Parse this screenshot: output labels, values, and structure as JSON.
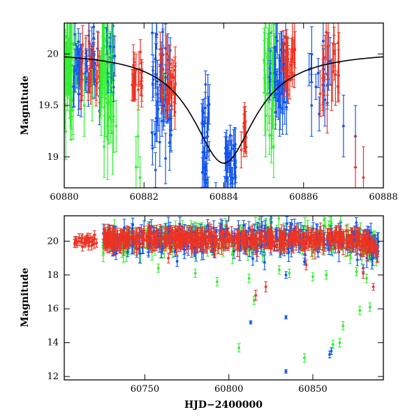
{
  "chart_data": [
    {
      "type": "scatter",
      "title": "",
      "xlabel": "",
      "ylabel": "Magnitude",
      "xlim": [
        60880,
        60888
      ],
      "ylim": [
        20.3,
        18.7
      ],
      "y_inverted": true,
      "x_ticks": [
        60880,
        60882,
        60884,
        60886,
        60888
      ],
      "y_ticks": [
        19,
        19.5,
        20
      ],
      "x_tick_labels": [
        "60880",
        "60882",
        "60884",
        "60886",
        "60888"
      ],
      "y_tick_labels": [
        "19",
        "19.5",
        "20"
      ],
      "series_colors": {
        "green": "#33ee33",
        "blue": "#1155ee",
        "red": "#ee3322",
        "model": "#000000"
      },
      "model_curve": {
        "type": "lorentzian-peak",
        "peak_x": 60884.0,
        "peak_mag": 18.94,
        "baseline_mag": 20.03
      },
      "series": [
        {
          "color": "green",
          "points": [
            [
              60880.02,
              19.85,
              0.3
            ],
            [
              60880.08,
              20.05,
              0.35
            ],
            [
              60880.15,
              19.7,
              0.4
            ],
            [
              60880.22,
              20.1,
              0.3
            ],
            [
              60880.3,
              19.95,
              0.25
            ],
            [
              60880.5,
              19.5,
              0.3
            ],
            [
              60880.7,
              19.6,
              0.25
            ],
            [
              60881.0,
              19.1,
              0.3
            ],
            [
              60881.05,
              19.9,
              0.3
            ],
            [
              60881.1,
              20.05,
              0.3
            ],
            [
              60881.15,
              19.7,
              0.3
            ],
            [
              60881.2,
              20.0,
              0.3
            ],
            [
              60881.3,
              19.3,
              0.25
            ],
            [
              60881.8,
              18.9,
              0.3
            ],
            [
              60881.85,
              19.2,
              0.3
            ],
            [
              60881.9,
              18.8,
              0.2
            ],
            [
              60882.5,
              19.6,
              0.2
            ],
            [
              60885.05,
              19.4,
              0.4
            ],
            [
              60885.1,
              19.9,
              0.3
            ],
            [
              60885.15,
              20.1,
              0.2
            ],
            [
              60885.2,
              19.7,
              0.3
            ],
            [
              60885.25,
              19.1,
              0.3
            ]
          ]
        },
        {
          "color": "blue",
          "points": [
            [
              60880.3,
              19.95,
              0.15
            ],
            [
              60880.4,
              20.05,
              0.15
            ],
            [
              60880.55,
              19.9,
              0.15
            ],
            [
              60880.75,
              19.85,
              0.15
            ],
            [
              60882.3,
              19.8,
              0.3
            ],
            [
              60882.4,
              19.7,
              0.2
            ],
            [
              60882.5,
              19.5,
              0.2
            ],
            [
              60882.6,
              19.6,
              0.25
            ],
            [
              60883.5,
              18.9,
              0.2
            ],
            [
              60883.6,
              19.5,
              0.3
            ],
            [
              60883.8,
              18.6,
              0.15
            ],
            [
              60884.1,
              19.0,
              0.15
            ],
            [
              60884.2,
              18.75,
              0.15
            ],
            [
              60884.3,
              18.9,
              0.15
            ],
            [
              60885.3,
              19.8,
              0.25
            ],
            [
              60885.4,
              19.5,
              0.3
            ],
            [
              60885.5,
              19.9,
              0.2
            ],
            [
              60886.2,
              19.5,
              0.3
            ],
            [
              60886.5,
              19.85,
              0.2
            ],
            [
              60886.6,
              19.7,
              0.2
            ],
            [
              60887.0,
              19.3,
              0.3
            ],
            [
              60887.3,
              19.2,
              0.3
            ]
          ]
        },
        {
          "color": "red",
          "points": [
            [
              60880.45,
              19.75,
              0.2
            ],
            [
              60880.6,
              19.7,
              0.15
            ],
            [
              60880.8,
              19.75,
              0.2
            ],
            [
              60881.7,
              19.7,
              0.15
            ],
            [
              60881.8,
              19.85,
              0.15
            ],
            [
              60882.6,
              19.6,
              0.15
            ],
            [
              60882.7,
              19.8,
              0.15
            ],
            [
              60884.5,
              19.15,
              0.15
            ],
            [
              60884.55,
              19.2,
              0.15
            ],
            [
              60885.6,
              19.85,
              0.2
            ],
            [
              60885.7,
              19.95,
              0.2
            ],
            [
              60886.5,
              19.6,
              0.2
            ],
            [
              60886.6,
              19.9,
              0.3
            ],
            [
              60886.7,
              19.7,
              0.25
            ],
            [
              60886.8,
              19.8,
              0.3
            ],
            [
              60887.3,
              18.9,
              0.3
            ],
            [
              60887.5,
              18.8,
              0.3
            ]
          ]
        }
      ]
    },
    {
      "type": "scatter",
      "title": "",
      "xlabel": "HJD−2400000",
      "ylabel": "Magnitude",
      "xlim": [
        60702,
        60892
      ],
      "ylim": [
        21.5,
        11.8
      ],
      "y_inverted": true,
      "x_ticks": [
        60750,
        60800,
        60850
      ],
      "y_ticks": [
        12,
        14,
        16,
        18,
        20
      ],
      "x_tick_labels": [
        "60750",
        "60800",
        "60850"
      ],
      "y_tick_labels": [
        "12",
        "14",
        "16",
        "18",
        "20"
      ],
      "dense_band": {
        "x_start": 60725,
        "x_end": 60889,
        "mean_mag": 20.1,
        "scatter_mag": 0.35,
        "pre_x_start": 60708,
        "pre_x_end": 60722
      },
      "series": [
        {
          "color": "green",
          "points": [
            [
              60806,
              13.7,
              0.25
            ],
            [
              60845,
              13.1,
              0.25
            ],
            [
              60862,
              13.9,
              0.25
            ],
            [
              60866,
              14.0,
              0.25
            ],
            [
              60868,
              15.0,
              0.25
            ],
            [
              60878,
              15.9,
              0.25
            ],
            [
              60884,
              16.1,
              0.25
            ],
            [
              60815,
              16.5,
              0.25
            ],
            [
              60793,
              17.6,
              0.25
            ],
            [
              60812,
              17.8,
              0.25
            ],
            [
              60758,
              18.4,
              0.25
            ],
            [
              60780,
              18.1,
              0.25
            ],
            [
              60830,
              18.3,
              0.25
            ],
            [
              60836,
              18.1,
              0.25
            ],
            [
              60850,
              17.9,
              0.25
            ],
            [
              60858,
              18.0,
              0.25
            ],
            [
              60876,
              18.2,
              0.25
            ],
            [
              60882,
              17.8,
              0.25
            ]
          ]
        },
        {
          "color": "blue",
          "points": [
            [
              60834,
              12.3,
              0.1
            ],
            [
              60860,
              13.3,
              0.2
            ],
            [
              60861,
              13.5,
              0.2
            ],
            [
              60813,
              15.2,
              0.1
            ],
            [
              60834,
              15.5,
              0.1
            ],
            [
              60834,
              18.0,
              0.2
            ],
            [
              60845,
              18.8,
              0.2
            ],
            [
              60880,
              18.4,
              0.2
            ]
          ]
        },
        {
          "color": "red",
          "points": [
            [
              60816,
              16.8,
              0.3
            ],
            [
              60822,
              17.3,
              0.3
            ],
            [
              60886,
              17.3,
              0.2
            ],
            [
              60880,
              18.1,
              0.3
            ],
            [
              60846,
              18.6,
              0.3
            ],
            [
              60764,
              19.0,
              0.3
            ]
          ]
        }
      ]
    }
  ]
}
